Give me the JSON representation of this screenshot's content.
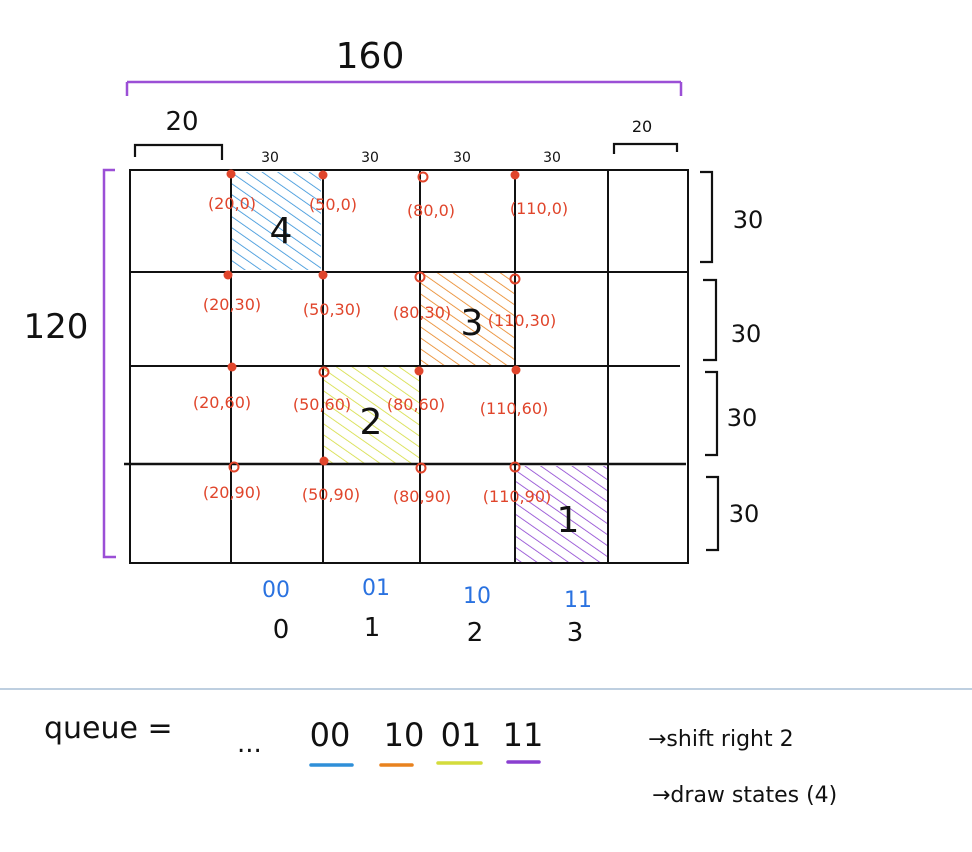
{
  "dimensions": {
    "width_total": "160",
    "height_total": "120",
    "left_margin": "20",
    "right_margin": "20",
    "column_widths": [
      "30",
      "30",
      "30",
      "30"
    ],
    "row_heights": [
      "30",
      "30",
      "30",
      "30"
    ]
  },
  "coordinates": [
    [
      "(20,0)",
      "(50,0)",
      "(80,0)",
      "(110,0)"
    ],
    [
      "(20,30)",
      "(50,30)",
      "(80,30)",
      "(110,30)"
    ],
    [
      "(20,60)",
      "(50,60)",
      "(80,60)",
      "(110,60)"
    ],
    [
      "(20,90)",
      "(50,90)",
      "(80,90)",
      "(110,90)"
    ]
  ],
  "states": [
    {
      "number": "4",
      "color": "#2f8fd8"
    },
    {
      "number": "3",
      "color": "#e8821e"
    },
    {
      "number": "2",
      "color": "#d4dc3c"
    },
    {
      "number": "1",
      "color": "#8a3fd0"
    }
  ],
  "columns": [
    {
      "binary": "00",
      "index": "0"
    },
    {
      "binary": "01",
      "index": "1"
    },
    {
      "binary": "10",
      "index": "2"
    },
    {
      "binary": "11",
      "index": "3"
    }
  ],
  "queue": {
    "label": "queue =",
    "prefix": "...",
    "bits": [
      {
        "text": "00",
        "color": "#2f8fd8"
      },
      {
        "text": "10",
        "color": "#e8821e"
      },
      {
        "text": "01",
        "color": "#d4dc3c"
      },
      {
        "text": "11",
        "color": "#8a3fd0"
      }
    ]
  },
  "notes": [
    "→shift right 2",
    "→draw states (4)"
  ],
  "colors": {
    "ink": "#111111",
    "red": "#e0452b",
    "purple": "#9b4fd6",
    "blue": "#2a72e0",
    "divider": "#a9bfd6"
  }
}
